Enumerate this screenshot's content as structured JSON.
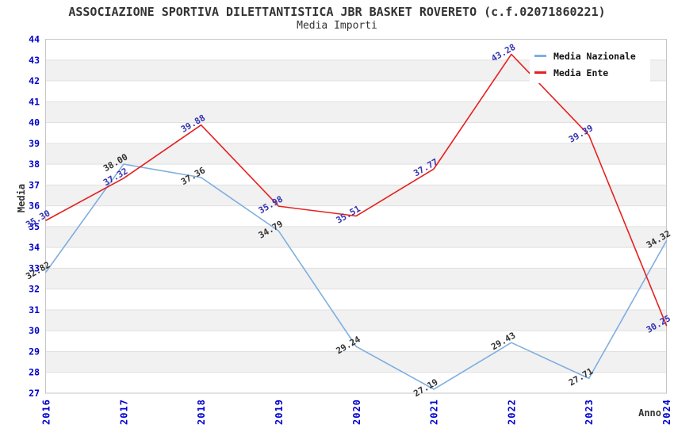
{
  "title": "ASSOCIAZIONE SPORTIVA DILETTANTISTICA JBR BASKET ROVERETO (c.f.02071860221)",
  "subtitle": "Media Importi",
  "axes": {
    "y_label": "Media",
    "x_label": "Anno"
  },
  "colors": {
    "tick_label": "#0000CC",
    "grid_line": "#E0E0E0",
    "band_fill": "#F1F1F1",
    "plot_border": "#C6C6C6",
    "title_text": "#333333",
    "nazionale_line": "#7FAEDF",
    "ente_line": "#E62020"
  },
  "chart_data": {
    "type": "line",
    "title": "ASSOCIAZIONE SPORTIVA DILETTANTISTICA JBR BASKET ROVERETO (c.f.02071860221)",
    "subtitle": "Media Importi",
    "xlabel": "Anno",
    "ylabel": "Media",
    "x": [
      "2016",
      "2017",
      "2018",
      "2019",
      "2020",
      "2021",
      "2022",
      "2023",
      "2024"
    ],
    "series": [
      {
        "name": "Media Nazionale",
        "color": "#7FAEDF",
        "label_color": "#333333",
        "values": [
          32.82,
          38.0,
          37.36,
          34.79,
          29.24,
          27.19,
          29.43,
          27.71,
          34.32
        ]
      },
      {
        "name": "Media Ente",
        "color": "#E62020",
        "label_color": "#3434B2",
        "values": [
          35.3,
          37.32,
          39.88,
          35.98,
          35.51,
          37.77,
          43.28,
          39.39,
          30.25
        ]
      }
    ],
    "ylim": [
      27,
      44
    ],
    "y_tick_step": 1,
    "grid": true,
    "band_rows": true,
    "legend_position": "top-right"
  }
}
